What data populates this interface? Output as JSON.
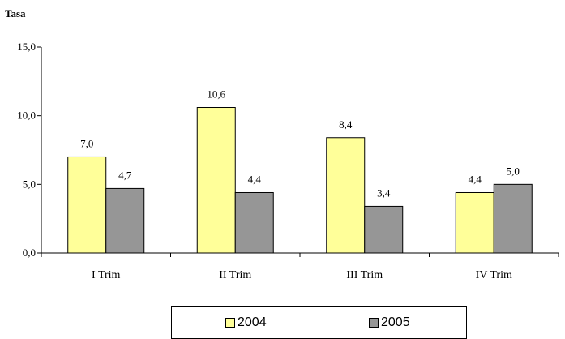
{
  "chart_data": {
    "type": "bar",
    "ylabel": "Tasa",
    "xlabel": "",
    "categories": [
      "I Trim",
      "II Trim",
      "III Trim",
      "IV Trim"
    ],
    "series": [
      {
        "name": "2004",
        "values": [
          7.0,
          10.6,
          8.4,
          4.4
        ],
        "labels": [
          "7,0",
          "10,6",
          "8,4",
          "4,4"
        ],
        "color": "#FFFF99"
      },
      {
        "name": "2005",
        "values": [
          4.7,
          4.4,
          3.4,
          5.0
        ],
        "labels": [
          "4,7",
          "4,4",
          "3,4",
          "5,0"
        ],
        "color": "#969696"
      }
    ],
    "ylim": [
      0,
      15
    ],
    "yticks": [
      0,
      5,
      10,
      15
    ],
    "ytick_labels": [
      "0,0",
      "5,0",
      "10,0",
      "15,0"
    ],
    "grid": false,
    "legend_position": "bottom"
  }
}
